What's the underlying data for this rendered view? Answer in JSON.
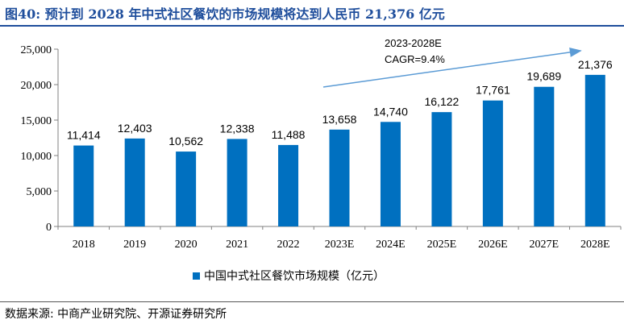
{
  "header": {
    "title": "图40:  预计到 2028 年中式社区餐饮的市场规模将达到人民币 21,376 亿元"
  },
  "footer": {
    "source": "数据来源:  中商产业研究院、开源证券研究所"
  },
  "colors": {
    "bar": "#0070c0",
    "arrow": "#5b9bd5",
    "title": "#1f4e9c"
  },
  "chart_data": {
    "type": "bar",
    "title": "",
    "xlabel": "",
    "ylabel": "",
    "categories": [
      "2018",
      "2019",
      "2020",
      "2021",
      "2022",
      "2023E",
      "2024E",
      "2025E",
      "2026E",
      "2027E",
      "2028E"
    ],
    "series": [
      {
        "name": "中国中式社区餐饮市场规模（亿元）",
        "values": [
          11414,
          12403,
          10562,
          12338,
          11488,
          13658,
          14740,
          16122,
          17761,
          19689,
          21376
        ]
      }
    ],
    "value_labels": [
      "11,414",
      "12,403",
      "10,562",
      "12,338",
      "11,488",
      "13,658",
      "14,740",
      "16,122",
      "17,761",
      "19,689",
      "21,376"
    ],
    "ylim": [
      0,
      25000
    ],
    "yticks": [
      0,
      5000,
      10000,
      15000,
      20000,
      25000
    ],
    "ytick_labels": [
      "0",
      "5,000",
      "10,000",
      "15,000",
      "20,000",
      "25,000"
    ],
    "grid": false,
    "legend_position": "bottom",
    "annotation": {
      "lines": [
        "2023-2028E",
        "CAGR=9.4%"
      ],
      "arrow_from": "2023E",
      "arrow_to": "2028E"
    }
  }
}
